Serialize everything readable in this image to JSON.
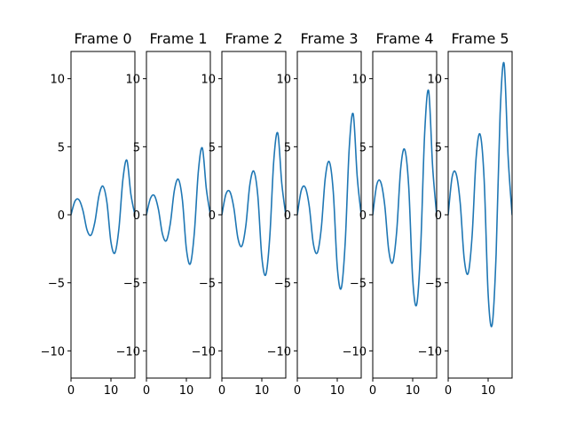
{
  "chart_data": [
    {
      "type": "line",
      "title": "Frame 0",
      "xlim": [
        0,
        16
      ],
      "ylim": [
        -12,
        12
      ],
      "xticks": [
        0,
        10
      ],
      "yticks": [
        -10,
        -5,
        0,
        5,
        10
      ],
      "color": "#1f77b4",
      "series": [
        {
          "x": [
            0,
            1,
            2,
            3,
            4,
            5,
            6,
            7,
            8,
            9,
            10,
            11,
            12,
            13,
            14,
            15,
            16
          ],
          "y": [
            0,
            1.0,
            1.1,
            0.3,
            -1.1,
            -1.5,
            -0.5,
            1.4,
            2.1,
            0.9,
            -2.0,
            -2.8,
            -1.0,
            2.6,
            4.0,
            1.5,
            0
          ]
        }
      ]
    },
    {
      "type": "line",
      "title": "Frame 1",
      "xlim": [
        0,
        16
      ],
      "ylim": [
        -12,
        12
      ],
      "xticks": [
        0,
        10
      ],
      "yticks": [
        -10,
        -5,
        0,
        5,
        10
      ],
      "color": "#1f77b4",
      "series": [
        {
          "x": [
            0,
            1,
            2,
            3,
            4,
            5,
            6,
            7,
            8,
            9,
            10,
            11,
            12,
            13,
            14,
            15,
            16
          ],
          "y": [
            0,
            1.2,
            1.4,
            0.4,
            -1.4,
            -1.9,
            -0.6,
            1.8,
            2.6,
            1.1,
            -2.5,
            -3.6,
            -1.3,
            3.2,
            4.9,
            1.9,
            0
          ]
        }
      ]
    },
    {
      "type": "line",
      "title": "Frame 2",
      "xlim": [
        0,
        16
      ],
      "ylim": [
        -12,
        12
      ],
      "xticks": [
        0,
        10
      ],
      "yticks": [
        -10,
        -5,
        0,
        5,
        10
      ],
      "color": "#1f77b4",
      "series": [
        {
          "x": [
            0,
            1,
            2,
            3,
            4,
            5,
            6,
            7,
            8,
            9,
            10,
            11,
            12,
            13,
            14,
            15,
            16
          ],
          "y": [
            0,
            1.5,
            1.7,
            0.5,
            -1.7,
            -2.3,
            -0.8,
            2.2,
            3.2,
            1.4,
            -3.1,
            -4.4,
            -1.6,
            4.0,
            6.0,
            2.3,
            0
          ]
        }
      ]
    },
    {
      "type": "line",
      "title": "Frame 3",
      "xlim": [
        0,
        16
      ],
      "ylim": [
        -12,
        12
      ],
      "xticks": [
        0,
        10
      ],
      "yticks": [
        -10,
        -5,
        0,
        5,
        10
      ],
      "color": "#1f77b4",
      "series": [
        {
          "x": [
            0,
            1,
            2,
            3,
            4,
            5,
            6,
            7,
            8,
            9,
            10,
            11,
            12,
            13,
            14,
            15,
            16
          ],
          "y": [
            0,
            1.8,
            2.0,
            0.6,
            -2.1,
            -2.8,
            -1.0,
            2.7,
            3.9,
            1.7,
            -3.8,
            -5.4,
            -2.0,
            4.9,
            7.4,
            2.8,
            0
          ]
        }
      ]
    },
    {
      "type": "line",
      "title": "Frame 4",
      "xlim": [
        0,
        16
      ],
      "ylim": [
        -12,
        12
      ],
      "xticks": [
        0,
        10
      ],
      "yticks": [
        -10,
        -5,
        0,
        5,
        10
      ],
      "color": "#1f77b4",
      "series": [
        {
          "x": [
            0,
            1,
            2,
            3,
            4,
            5,
            6,
            7,
            8,
            9,
            10,
            11,
            12,
            13,
            14,
            15,
            16
          ],
          "y": [
            0,
            2.2,
            2.4,
            0.7,
            -2.6,
            -3.5,
            -1.2,
            3.4,
            4.8,
            2.1,
            -4.7,
            -6.6,
            -2.4,
            6.0,
            9.1,
            3.5,
            0
          ]
        }
      ]
    },
    {
      "type": "line",
      "title": "Frame 5",
      "xlim": [
        0,
        16
      ],
      "ylim": [
        -12,
        12
      ],
      "xticks": [
        0,
        10
      ],
      "yticks": [
        -10,
        -5,
        0,
        5,
        10
      ],
      "color": "#1f77b4",
      "series": [
        {
          "x": [
            0,
            1,
            2,
            3,
            4,
            5,
            6,
            7,
            8,
            9,
            10,
            11,
            12,
            13,
            14,
            15,
            16
          ],
          "y": [
            0,
            2.8,
            3.0,
            0.9,
            -3.2,
            -4.3,
            -1.5,
            4.2,
            5.9,
            2.6,
            -5.8,
            -8.1,
            -2.9,
            7.4,
            11.1,
            4.3,
            0
          ]
        }
      ]
    }
  ]
}
